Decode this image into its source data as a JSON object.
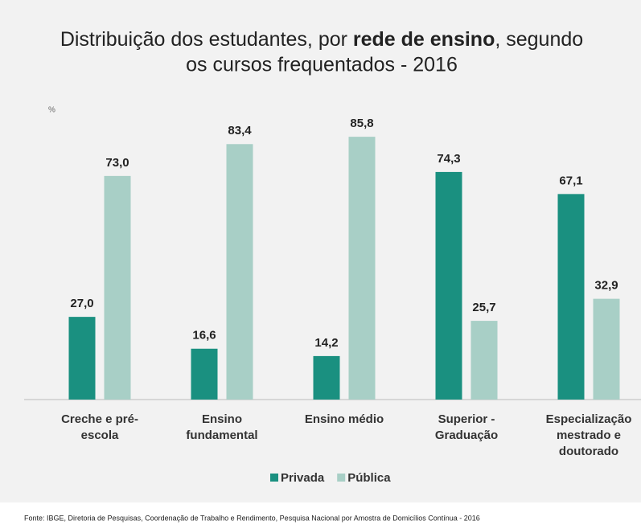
{
  "chart_data": {
    "type": "bar",
    "title": [
      "Distribuição dos estudantes, por ",
      "rede de ensino",
      ", segundo",
      "os cursos frequentados - 2016"
    ],
    "unit_label": "%",
    "categories": [
      [
        "Creche e pré-",
        "escola"
      ],
      [
        "Ensino",
        "fundamental"
      ],
      [
        "Ensino médio"
      ],
      [
        "Superior -",
        "Graduação"
      ],
      [
        "Especialização",
        "mestrado e",
        "doutorado"
      ]
    ],
    "series": [
      {
        "name": "Privada",
        "color": "#1a9080",
        "values": [
          27.0,
          16.6,
          14.2,
          74.3,
          67.1
        ],
        "value_labels": [
          "27,0",
          "16,6",
          "14,2",
          "74,3",
          "67,1"
        ]
      },
      {
        "name": "Pública",
        "color": "#a8cfc6",
        "values": [
          73.0,
          83.4,
          85.8,
          25.7,
          32.9
        ],
        "value_labels": [
          "73,0",
          "83,4",
          "85,8",
          "25,7",
          "32,9"
        ]
      }
    ],
    "ylim": [
      0,
      100
    ],
    "source": "Fonte: IBGE, Diretoria de Pesquisas, Coordenação de Trabalho e Rendimento, Pesquisa Nacional por Amostra de Domicílios Contínua - 2016"
  }
}
